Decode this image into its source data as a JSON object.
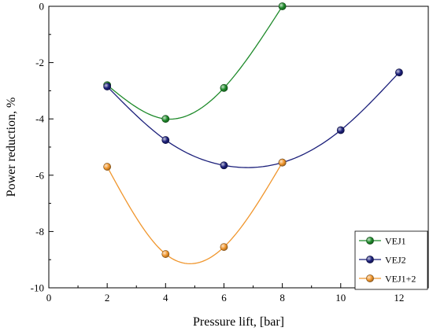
{
  "chart_data": {
    "type": "line",
    "title": "",
    "xlabel": "Pressure lift, [bar]",
    "ylabel": "Power reduction, %",
    "xlim": [
      0,
      13
    ],
    "ylim": [
      -10,
      0
    ],
    "xticks": [
      0,
      2,
      4,
      6,
      8,
      10,
      12
    ],
    "yticks": [
      0,
      -2,
      -4,
      -6,
      -8,
      -10
    ],
    "xtick_labels": [
      "0",
      "2",
      "4",
      "6",
      "8",
      "10",
      "12"
    ],
    "ytick_labels": [
      "0",
      "-2",
      "-4",
      "-6",
      "-8",
      "-10"
    ],
    "grid": false,
    "legend_position": "bottom-right",
    "series": [
      {
        "name": "VEJ1",
        "color": "#1e8a2a",
        "x": [
          2,
          4,
          6,
          8
        ],
        "y": [
          -2.8,
          -4.0,
          -2.9,
          0.0
        ]
      },
      {
        "name": "VEJ2",
        "color": "#1b1f7a",
        "x": [
          2,
          4,
          6,
          8,
          10,
          12
        ],
        "y": [
          -2.85,
          -4.75,
          -5.65,
          -5.55,
          -4.4,
          -2.35
        ]
      },
      {
        "name": "VEJ1+2",
        "color": "#f0962d",
        "x": [
          2,
          4,
          6,
          8
        ],
        "y": [
          -5.7,
          -8.8,
          -8.55,
          -5.55
        ]
      }
    ]
  }
}
